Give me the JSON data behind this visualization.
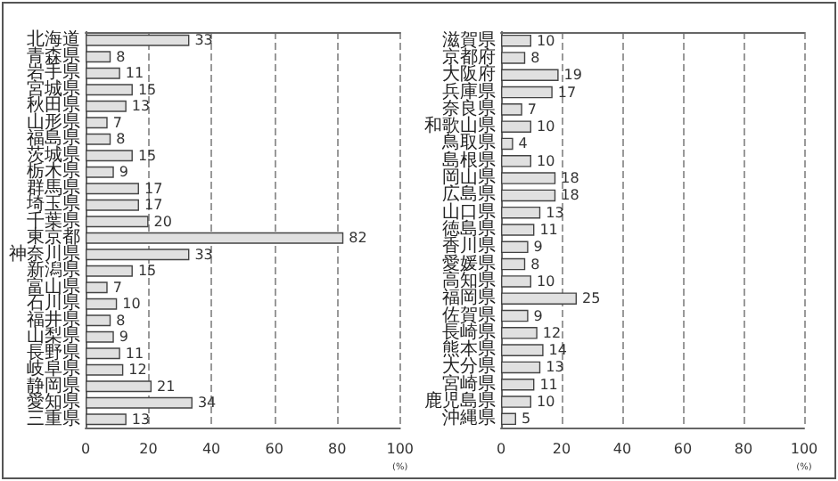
{
  "chart_data": [
    {
      "type": "bar",
      "orientation": "horizontal",
      "xlabel": "(%)",
      "categories": [
        "北海道",
        "青森県",
        "岩手県",
        "宮城県",
        "秋田県",
        "山形県",
        "福島県",
        "茨城県",
        "栃木県",
        "群馬県",
        "埼玉県",
        "千葉県",
        "東京都",
        "神奈川県",
        "新潟県",
        "富山県",
        "石川県",
        "福井県",
        "山梨県",
        "長野県",
        "岐阜県",
        "静岡県",
        "愛知県",
        "三重県"
      ],
      "values": [
        33,
        8,
        11,
        15,
        13,
        7,
        8,
        15,
        9,
        17,
        17,
        20,
        82,
        33,
        15,
        7,
        10,
        8,
        9,
        11,
        12,
        21,
        34,
        13
      ],
      "color": "#e0e0e0",
      "xlim": [
        0,
        100
      ],
      "xticks": [
        0,
        20,
        40,
        60,
        80,
        100
      ],
      "grid": "x",
      "data_labels": true
    },
    {
      "type": "bar",
      "orientation": "horizontal",
      "xlabel": "(%)",
      "categories": [
        "滋賀県",
        "京都府",
        "大阪府",
        "兵庫県",
        "奈良県",
        "和歌山県",
        "鳥取県",
        "島根県",
        "岡山県",
        "広島県",
        "山口県",
        "徳島県",
        "香川県",
        "愛媛県",
        "高知県",
        "福岡県",
        "佐賀県",
        "長崎県",
        "熊本県",
        "大分県",
        "宮崎県",
        "鹿児島県",
        "沖縄県"
      ],
      "values": [
        10,
        8,
        19,
        17,
        7,
        10,
        4,
        10,
        18,
        18,
        13,
        11,
        9,
        8,
        10,
        25,
        9,
        12,
        14,
        13,
        11,
        10,
        5
      ],
      "color": "#e0e0e0",
      "xlim": [
        0,
        100
      ],
      "xticks": [
        0,
        20,
        40,
        60,
        80,
        100
      ],
      "grid": "x",
      "data_labels": true
    }
  ]
}
